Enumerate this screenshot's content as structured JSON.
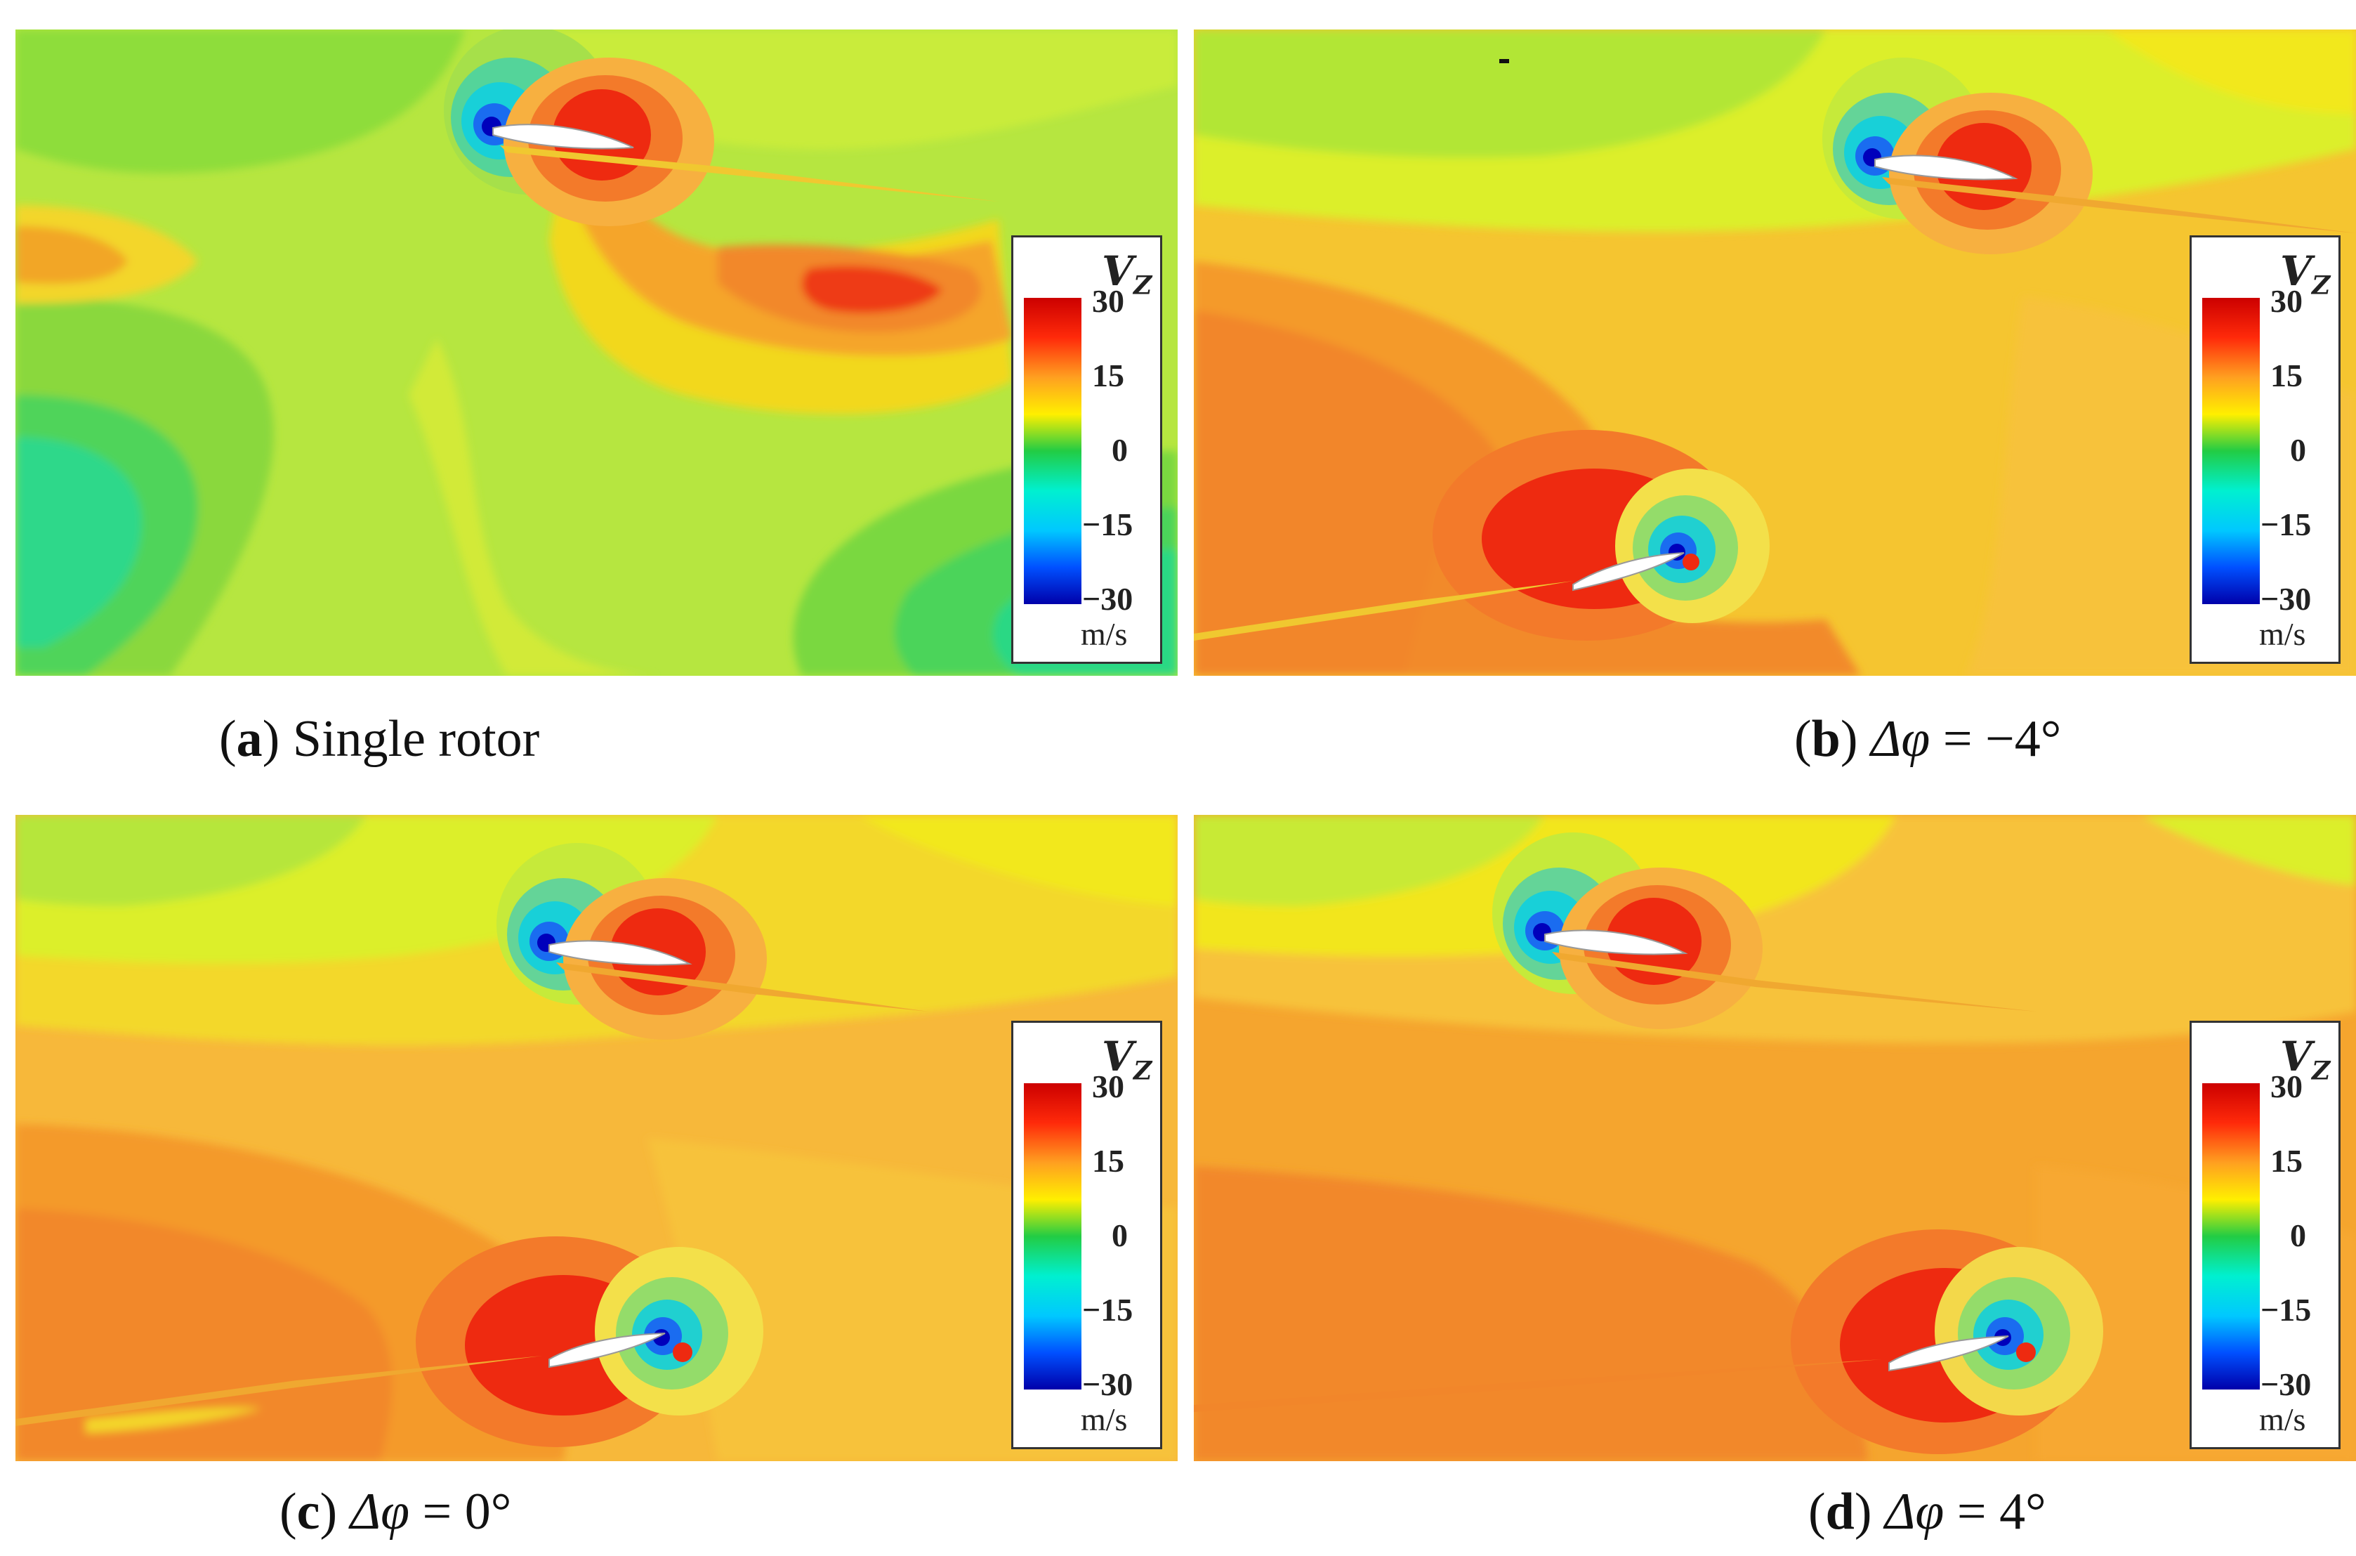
{
  "panels": [
    {
      "letter": "a",
      "label": "Single rotor",
      "symbol": "",
      "equals": "",
      "value": ""
    },
    {
      "letter": "b",
      "label": "",
      "symbol": "Δφ",
      "equals": " = ",
      "value": "−4°"
    },
    {
      "letter": "c",
      "label": "",
      "symbol": "Δφ",
      "equals": " = ",
      "value": "0°"
    },
    {
      "letter": "d",
      "label": "",
      "symbol": "Δφ",
      "equals": " = ",
      "value": "4°"
    }
  ],
  "colorbar": {
    "variable": "V",
    "subscript": "Z",
    "unit": "m/s",
    "ticks": [
      "30",
      "15",
      "0",
      "−15",
      "−30"
    ],
    "range": [
      -30,
      30
    ]
  },
  "colors": {
    "blue": "#0000cc",
    "cyan": "#00e5ff",
    "green": "#22cc44",
    "yellow": "#ffee00",
    "orange": "#ff9a1a",
    "red": "#ee1a0a"
  },
  "chart_data": {
    "type": "heatmap",
    "variable": "V_Z",
    "unit": "m/s",
    "value_range": [
      -30,
      30
    ],
    "colorbar_ticks": [
      30,
      15,
      0,
      -15,
      -30
    ],
    "subplots": [
      {
        "id": "a",
        "caption": "Single rotor",
        "blades": 1
      },
      {
        "id": "b",
        "caption": "Δφ = −4°",
        "blades": 2
      },
      {
        "id": "c",
        "caption": "Δφ = 0°",
        "blades": 2
      },
      {
        "id": "d",
        "caption": "Δφ = 4°",
        "blades": 2
      }
    ]
  }
}
